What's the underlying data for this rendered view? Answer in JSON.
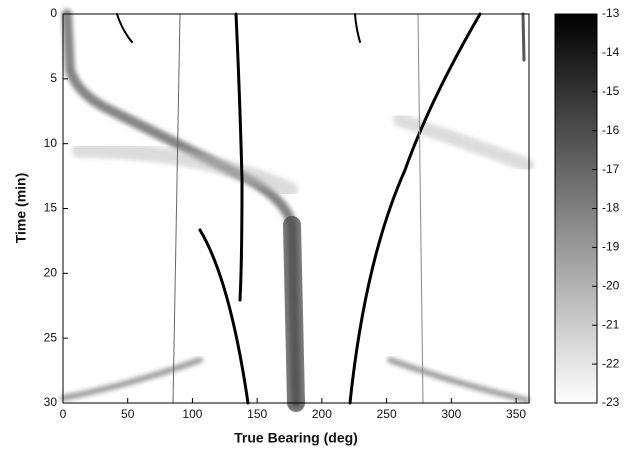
{
  "chart_data": {
    "type": "heatmap",
    "xlabel": "True Bearing (deg)",
    "ylabel": "Time (min)",
    "xlim": [
      0,
      360
    ],
    "xticks": [
      0,
      50,
      100,
      150,
      200,
      250,
      300,
      350
    ],
    "ylim": [
      30,
      0
    ],
    "yticks": [
      0,
      5,
      10,
      15,
      20,
      25,
      30
    ],
    "clim": [
      -23,
      -13
    ],
    "cticks": [
      -13,
      -14,
      -15,
      -16,
      -17,
      -18,
      -19,
      -20,
      -21,
      -22,
      -23
    ],
    "colormap": [
      "#ffffff",
      "#000000"
    ]
  }
}
